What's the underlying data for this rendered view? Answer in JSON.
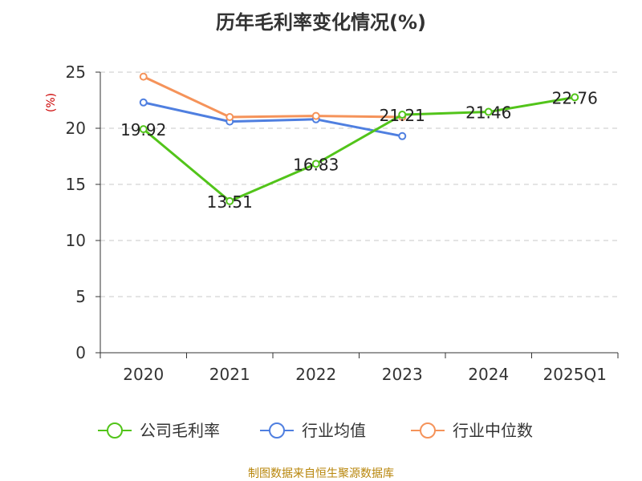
{
  "chart_data": {
    "type": "line",
    "title": "历年毛利率变化情况(%)",
    "ylabel": "(%)",
    "categories": [
      "2020",
      "2021",
      "2022",
      "2023",
      "2024",
      "2025Q1"
    ],
    "ylim": [
      0,
      25
    ],
    "yticks": [
      0,
      5,
      10,
      15,
      20,
      25
    ],
    "grid": true,
    "legend_position": "bottom",
    "series": [
      {
        "name": "公司毛利率",
        "color": "#52c41a",
        "values": [
          19.92,
          13.51,
          16.83,
          21.21,
          21.46,
          22.76
        ],
        "labels": [
          "19.92",
          "13.51",
          "16.83",
          "21.21",
          "21.46",
          "22.76"
        ]
      },
      {
        "name": "行业均值",
        "color": "#4f7fe0",
        "values": [
          22.3,
          20.6,
          20.8,
          19.3,
          null,
          null
        ]
      },
      {
        "name": "行业中位数",
        "color": "#f5935a",
        "values": [
          24.6,
          21.0,
          21.1,
          21.0,
          null,
          null
        ]
      }
    ],
    "source": "制图数据来自恒生聚源数据库"
  }
}
